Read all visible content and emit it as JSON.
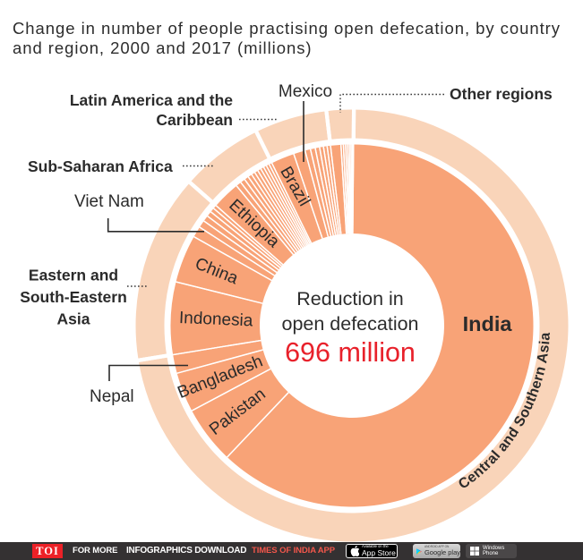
{
  "title": {
    "line1": "Change in number of people practising open defecation, by country",
    "line2": "and region, 2000 and 2017 (millions)"
  },
  "chart_data": {
    "type": "sunburst",
    "title": "Change in number of people practising open defecation, by country and region, 2000 and 2017 (millions)",
    "units": "millions of people (values estimated from segment angles; no numbers printed on chart)",
    "center_label": {
      "line1": "Reduction in",
      "line2": "open defecation",
      "value": "696 million"
    },
    "total_millions": 696,
    "start_angle_deg": 0.5,
    "legend_position": "none",
    "rings": {
      "inner": "countries",
      "outer": "regions"
    },
    "regions": [
      {
        "name": "Central and Southern Asia",
        "value": 503.2
      },
      {
        "name": "Eastern and South-Eastern Asia",
        "value": 98.1
      },
      {
        "name": "Sub-Saharan Africa",
        "value": 43.1
      },
      {
        "name": "Latin America and the Caribbean",
        "value": 37.6
      },
      {
        "name": "Other regions",
        "value": 14.1
      }
    ],
    "countries": [
      {
        "name": "India",
        "region": 0,
        "value": 431.1
      },
      {
        "name": "Pakistan",
        "region": 0,
        "value": 35.8
      },
      {
        "name": "Bangladesh",
        "region": 0,
        "value": 24.7
      },
      {
        "name": "Nepal",
        "region": 0,
        "value": 11.6
      },
      {
        "name": "Indonesia",
        "region": 1,
        "value": 44.9
      },
      {
        "name": "China",
        "region": 1,
        "value": 29.8
      },
      {
        "name": "Viet Nam",
        "region": 1,
        "value": 6.8
      },
      {
        "name": "",
        "region": 1,
        "value": 4.6
      },
      {
        "name": "",
        "region": 1,
        "value": 3.7
      },
      {
        "name": "",
        "region": 1,
        "value": 3.3
      },
      {
        "name": "",
        "region": 1,
        "value": 2.7
      },
      {
        "name": "",
        "region": 1,
        "value": 2.3
      },
      {
        "name": "Ethiopia",
        "region": 2,
        "value": 17.4
      },
      {
        "name": "",
        "region": 2,
        "value": 3.3
      },
      {
        "name": "",
        "region": 2,
        "value": 3.0
      },
      {
        "name": "",
        "region": 2,
        "value": 2.7
      },
      {
        "name": "",
        "region": 2,
        "value": 2.5
      },
      {
        "name": "",
        "region": 2,
        "value": 2.3
      },
      {
        "name": "",
        "region": 2,
        "value": 2.2
      },
      {
        "name": "",
        "region": 2,
        "value": 2.1
      },
      {
        "name": "",
        "region": 2,
        "value": 2.0
      },
      {
        "name": "",
        "region": 2,
        "value": 1.9
      },
      {
        "name": "",
        "region": 2,
        "value": 1.9
      },
      {
        "name": "",
        "region": 2,
        "value": 1.8
      },
      {
        "name": "Brazil",
        "region": 3,
        "value": 14.5
      },
      {
        "name": "Mexico",
        "region": 3,
        "value": 7.2
      },
      {
        "name": "",
        "region": 3,
        "value": 3.4
      },
      {
        "name": "",
        "region": 3,
        "value": 3.0
      },
      {
        "name": "",
        "region": 3,
        "value": 2.7
      },
      {
        "name": "",
        "region": 3,
        "value": 2.4
      },
      {
        "name": "",
        "region": 3,
        "value": 2.25
      },
      {
        "name": "",
        "region": 3,
        "value": 2.1
      },
      {
        "name": "",
        "region": 4,
        "value": 6.4
      },
      {
        "name": "",
        "region": 4,
        "value": 1.5
      },
      {
        "name": "",
        "region": 4,
        "value": 1.35
      },
      {
        "name": "",
        "region": 4,
        "value": 1.2
      },
      {
        "name": "",
        "region": 4,
        "value": 1.1
      },
      {
        "name": "",
        "region": 4,
        "value": 1.0
      },
      {
        "name": "",
        "region": 4,
        "value": 0.85
      },
      {
        "name": "",
        "region": 4,
        "value": 0.7
      }
    ],
    "colors": {
      "inner_ring": "#f8a377",
      "outer_ring": "#f9d4b9",
      "separator": "#ffffff",
      "label": "#2b2b2b",
      "value_red": "#e8212b"
    }
  },
  "labels": {
    "latam_line1": "Latin America and the",
    "latam_line2": "Caribbean",
    "mexico": "Mexico",
    "other_regions": "Other regions",
    "sub_saharan": "Sub-Saharan Africa",
    "viet_nam": "Viet Nam",
    "esea_line1": "Eastern and",
    "esea_line2": "South-Eastern",
    "esea_line3": "Asia",
    "nepal": "Nepal",
    "india": "India",
    "central_southern_asia": "Central and Southern Asia",
    "center_line1": "Reduction in",
    "center_line2": "open defecation",
    "center_value": "696 million"
  },
  "footer": {
    "logo": "TOI",
    "text1": "FOR MORE",
    "text2": "INFOGRAPHICS DOWNLOAD",
    "text3": "TIMES OF INDIA APP",
    "appstore_line1": "Available on the",
    "appstore_line2": "App Store",
    "gplay_line1": "ANDROID APP ON",
    "gplay_line2": "Google play",
    "windows_line1": "Windows",
    "windows_line2": "Phone"
  }
}
